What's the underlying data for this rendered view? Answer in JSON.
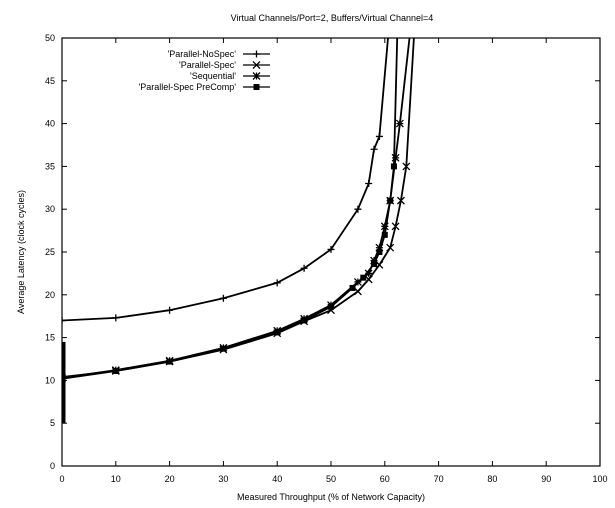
{
  "chart_data": {
    "type": "line",
    "title": "Virtual Channels/Port=2, Buffers/Virtual Channel=4",
    "xlabel": "Measured Throughput (% of Network Capacity)",
    "ylabel": "Average Latency (clock cycles)",
    "xlim": [
      0,
      100
    ],
    "ylim": [
      0,
      50
    ],
    "xticks": [
      0,
      10,
      20,
      30,
      40,
      50,
      60,
      70,
      80,
      90,
      100
    ],
    "yticks": [
      0,
      5,
      10,
      15,
      20,
      25,
      30,
      35,
      40,
      45,
      50
    ],
    "grid": false,
    "legend_position": "top-left",
    "series": [
      {
        "name": "'Parallel-NoSpec'",
        "marker": "plus",
        "x": [
          0,
          10,
          20,
          30,
          40,
          45,
          50,
          55,
          57,
          58,
          59,
          60.6
        ],
        "y": [
          17,
          17.3,
          18.2,
          19.6,
          21.4,
          23.1,
          25.3,
          30,
          33,
          37,
          38.5,
          50
        ]
      },
      {
        "name": "'Parallel-Spec'",
        "marker": "cross",
        "x": [
          0,
          10,
          20,
          30,
          40,
          45,
          50,
          55,
          57,
          59,
          61,
          62,
          63,
          64,
          65.4
        ],
        "y": [
          10.2,
          11.1,
          12.2,
          13.6,
          15.5,
          16.9,
          18.2,
          20.4,
          21.8,
          23.5,
          25.5,
          28,
          31,
          35,
          50
        ]
      },
      {
        "name": "'Sequential'",
        "marker": "star",
        "x": [
          0,
          10,
          20,
          30,
          40,
          45,
          50,
          55,
          57,
          58,
          59,
          60,
          61,
          62,
          62.8,
          64.6
        ],
        "y": [
          10.3,
          11.2,
          12.3,
          13.8,
          15.8,
          17.2,
          18.8,
          21.5,
          22.5,
          24,
          25.5,
          28,
          31,
          36,
          40,
          50
        ]
      },
      {
        "name": "'Parallel-Spec PreComp'",
        "marker": "square",
        "x": [
          0,
          10,
          20,
          30,
          40,
          45,
          50,
          54,
          56,
          58,
          59,
          60,
          61,
          61.7,
          62.3
        ],
        "y": [
          10.4,
          11.1,
          12.2,
          13.7,
          15.6,
          17,
          18.6,
          20.8,
          22,
          23.6,
          25,
          27,
          31,
          35,
          50
        ]
      }
    ]
  }
}
